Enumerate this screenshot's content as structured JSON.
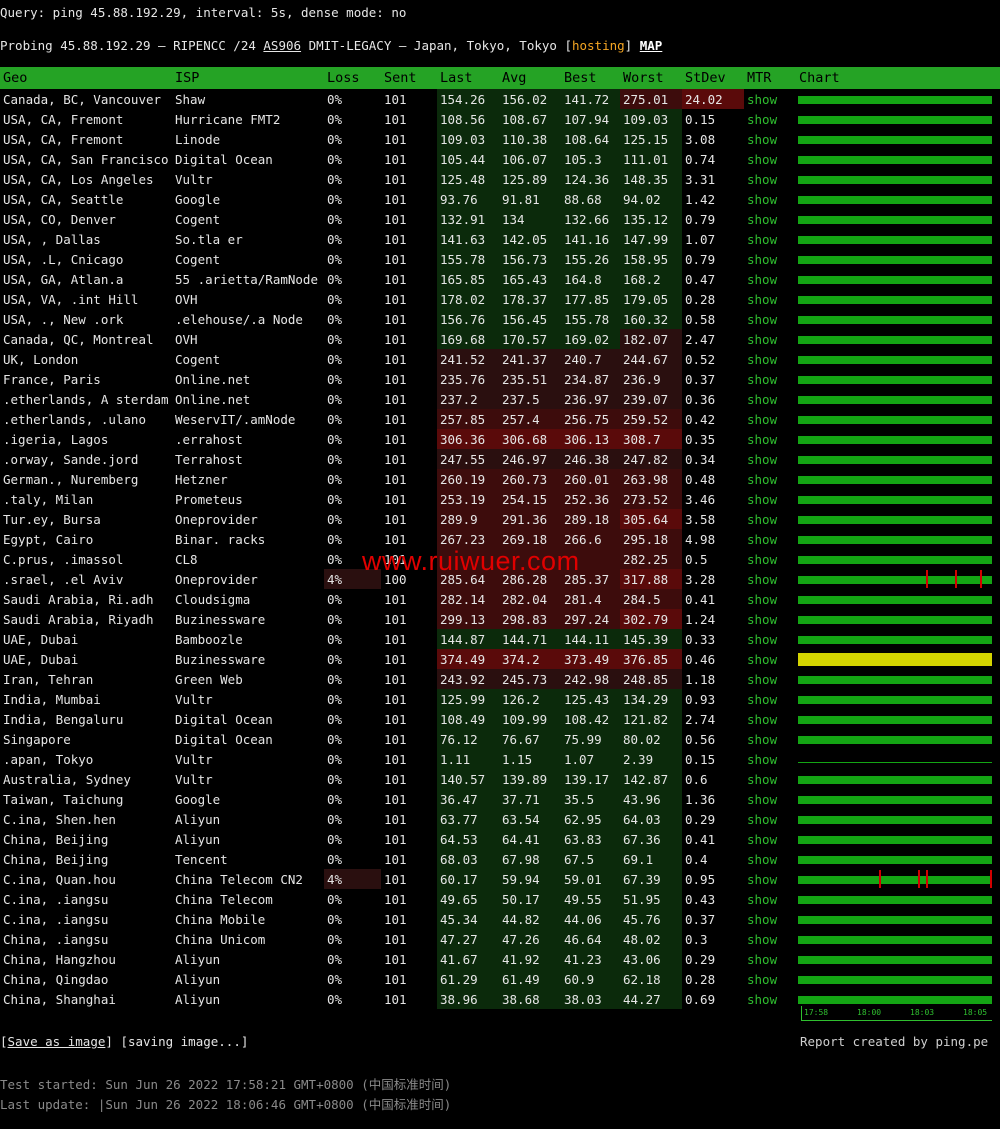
{
  "query": "Query: ping 45.88.192.29, interval: 5s, dense mode: no",
  "probe": {
    "prefix": "Probing 45.88.192.29 – RIPENCC /24 ",
    "asn": "AS906",
    "mid": " DMIT-LEGACY – Japan, Tokyo, Tokyo [",
    "hosting": "hosting",
    "close": "] ",
    "map": "MAP"
  },
  "headers": [
    "Geo",
    "ISP",
    "Loss",
    "Sent",
    "Last",
    "Avg",
    "Best",
    "Worst",
    "StDev",
    "MTR",
    "Chart"
  ],
  "rows": [
    {
      "geo": "Canada, BC, Vancouver",
      "isp": "Shaw",
      "loss": "0%",
      "sent": "101",
      "last": "154.26",
      "avg": "156.02",
      "best": "141.72",
      "worst": "275.01",
      "stdev": "24.02",
      "mtr": "show"
    },
    {
      "geo": "USA, CA, Fremont",
      "isp": "Hurricane FMT2",
      "loss": "0%",
      "sent": "101",
      "last": "108.56",
      "avg": "108.67",
      "best": "107.94",
      "worst": "109.03",
      "stdev": "0.15",
      "mtr": "show"
    },
    {
      "geo": "USA, CA, Fremont",
      "isp": "Linode",
      "loss": "0%",
      "sent": "101",
      "last": "109.03",
      "avg": "110.38",
      "best": "108.64",
      "worst": "125.15",
      "stdev": "3.08",
      "mtr": "show"
    },
    {
      "geo": "USA, CA, San Francisco",
      "isp": "Digital Ocean",
      "loss": "0%",
      "sent": "101",
      "last": "105.44",
      "avg": "106.07",
      "best": "105.3",
      "worst": "111.01",
      "stdev": "0.74",
      "mtr": "show"
    },
    {
      "geo": "USA, CA, Los Angeles",
      "isp": "Vultr",
      "loss": "0%",
      "sent": "101",
      "last": "125.48",
      "avg": "125.89",
      "best": "124.36",
      "worst": "148.35",
      "stdev": "3.31",
      "mtr": "show"
    },
    {
      "geo": "USA, CA, Seattle",
      "isp": "Google",
      "loss": "0%",
      "sent": "101",
      "last": "93.76",
      "avg": "91.81",
      "best": "88.68",
      "worst": "94.02",
      "stdev": "1.42",
      "mtr": "show"
    },
    {
      "geo": "USA, CO, Denver",
      "isp": "Cogent",
      "loss": "0%",
      "sent": "101",
      "last": "132.91",
      "avg": "134",
      "best": "132.66",
      "worst": "135.12",
      "stdev": "0.79",
      "mtr": "show"
    },
    {
      "geo": "USA,    , Dallas",
      "isp": "So.tla er",
      "loss": "0%",
      "sent": "101",
      "last": "141.63",
      "avg": "142.05",
      "best": "141.16",
      "worst": "147.99",
      "stdev": "1.07",
      "mtr": "show"
    },
    {
      "geo": "USA, .L, Cnicago",
      "isp": "Cogent",
      "loss": "0%",
      "sent": "101",
      "last": "155.78",
      "avg": "156.73",
      "best": "155.26",
      "worst": "158.95",
      "stdev": "0.79",
      "mtr": "show"
    },
    {
      "geo": "USA, GA, Atlan.a",
      "isp": "55 .arietta/RamNode",
      "loss": "0%",
      "sent": "101",
      "last": "165.85",
      "avg": "165.43",
      "best": "164.8",
      "worst": "168.2",
      "stdev": "0.47",
      "mtr": "show"
    },
    {
      "geo": "USA, VA, .int Hill",
      "isp": "OVH",
      "loss": "0%",
      "sent": "101",
      "last": "178.02",
      "avg": "178.37",
      "best": "177.85",
      "worst": "179.05",
      "stdev": "0.28",
      "mtr": "show"
    },
    {
      "geo": "USA, ., New .ork",
      "isp": ".elehouse/.a Node",
      "loss": "0%",
      "sent": "101",
      "last": "156.76",
      "avg": "156.45",
      "best": "155.78",
      "worst": "160.32",
      "stdev": "0.58",
      "mtr": "show"
    },
    {
      "geo": "Canada, QC, Montreal",
      "isp": "OVH",
      "loss": "0%",
      "sent": "101",
      "last": "169.68",
      "avg": "170.57",
      "best": "169.02",
      "worst": "182.07",
      "stdev": "2.47",
      "mtr": "show"
    },
    {
      "geo": "UK, London",
      "isp": "Cogent",
      "loss": "0%",
      "sent": "101",
      "last": "241.52",
      "avg": "241.37",
      "best": "240.7",
      "worst": "244.67",
      "stdev": "0.52",
      "mtr": "show"
    },
    {
      "geo": "France, Paris",
      "isp": "Online.net",
      "loss": "0%",
      "sent": "101",
      "last": "235.76",
      "avg": "235.51",
      "best": "234.87",
      "worst": "236.9",
      "stdev": "0.37",
      "mtr": "show"
    },
    {
      "geo": ".etherlands, A sterdam",
      "isp": "Online.net",
      "loss": "0%",
      "sent": "101",
      "last": "237.2",
      "avg": "237.5",
      "best": "236.97",
      "worst": "239.07",
      "stdev": "0.36",
      "mtr": "show"
    },
    {
      "geo": ".etherlands, .ulano",
      "isp": "WeservIT/.amNode",
      "loss": "0%",
      "sent": "101",
      "last": "257.85",
      "avg": "257.4",
      "best": "256.75",
      "worst": "259.52",
      "stdev": "0.42",
      "mtr": "show"
    },
    {
      "geo": ".igeria, Lagos",
      "isp": ".errahost",
      "loss": "0%",
      "sent": "101",
      "last": "306.36",
      "avg": "306.68",
      "best": "306.13",
      "worst": "308.7",
      "stdev": "0.35",
      "mtr": "show"
    },
    {
      "geo": ".orway, Sande.jord",
      "isp": "Terrahost",
      "loss": "0%",
      "sent": "101",
      "last": "247.55",
      "avg": "246.97",
      "best": "246.38",
      "worst": "247.82",
      "stdev": "0.34",
      "mtr": "show"
    },
    {
      "geo": "German., Nuremberg",
      "isp": "Hetzner",
      "loss": "0%",
      "sent": "101",
      "last": "260.19",
      "avg": "260.73",
      "best": "260.01",
      "worst": "263.98",
      "stdev": "0.48",
      "mtr": "show"
    },
    {
      "geo": ".taly, Milan",
      "isp": "Prometeus",
      "loss": "0%",
      "sent": "101",
      "last": "253.19",
      "avg": "254.15",
      "best": "252.36",
      "worst": "273.52",
      "stdev": "3.46",
      "mtr": "show"
    },
    {
      "geo": "Tur.ey, Bursa",
      "isp": "Oneprovider",
      "loss": "0%",
      "sent": "101",
      "last": "289.9",
      "avg": "291.36",
      "best": "289.18",
      "worst": "305.64",
      "stdev": "3.58",
      "mtr": "show"
    },
    {
      "geo": "Egypt, Cairo",
      "isp": "Binar. racks",
      "loss": "0%",
      "sent": "101",
      "last": "267.23",
      "avg": "269.18",
      "best": "266.6",
      "worst": "295.18",
      "stdev": "4.98",
      "mtr": "show"
    },
    {
      "geo": "C.prus, .imassol",
      "isp": "CL8",
      "loss": "0%",
      "sent": "101",
      "last": "",
      "avg": "",
      "best": "",
      "worst": "282.25",
      "stdev": "0.5",
      "mtr": "show"
    },
    {
      "geo": ".srael, .el Aviv",
      "isp": "Oneprovider",
      "loss": "4%",
      "sent": "100",
      "last": "285.64",
      "avg": "286.28",
      "best": "285.37",
      "worst": "317.88",
      "stdev": "3.28",
      "mtr": "show"
    },
    {
      "geo": "Saudi Arabia, Ri.adh",
      "isp": "Cloudsigma",
      "loss": "0%",
      "sent": "101",
      "last": "282.14",
      "avg": "282.04",
      "best": "281.4",
      "worst": "284.5",
      "stdev": "0.41",
      "mtr": "show"
    },
    {
      "geo": "Saudi Arabia, Riyadh",
      "isp": "Buzinessware",
      "loss": "0%",
      "sent": "101",
      "last": "299.13",
      "avg": "298.83",
      "best": "297.24",
      "worst": "302.79",
      "stdev": "1.24",
      "mtr": "show"
    },
    {
      "geo": "UAE, Dubai",
      "isp": "Bamboozle",
      "loss": "0%",
      "sent": "101",
      "last": "144.87",
      "avg": "144.71",
      "best": "144.11",
      "worst": "145.39",
      "stdev": "0.33",
      "mtr": "show"
    },
    {
      "geo": "UAE, Dubai",
      "isp": "Buzinessware",
      "loss": "0%",
      "sent": "101",
      "last": "374.49",
      "avg": "374.2",
      "best": "373.49",
      "worst": "376.85",
      "stdev": "0.46",
      "mtr": "show"
    },
    {
      "geo": "Iran, Tehran",
      "isp": "Green Web",
      "loss": "0%",
      "sent": "101",
      "last": "243.92",
      "avg": "245.73",
      "best": "242.98",
      "worst": "248.85",
      "stdev": "1.18",
      "mtr": "show"
    },
    {
      "geo": "India, Mumbai",
      "isp": "Vultr",
      "loss": "0%",
      "sent": "101",
      "last": "125.99",
      "avg": "126.2",
      "best": "125.43",
      "worst": "134.29",
      "stdev": "0.93",
      "mtr": "show"
    },
    {
      "geo": "India, Bengaluru",
      "isp": "Digital Ocean",
      "loss": "0%",
      "sent": "101",
      "last": "108.49",
      "avg": "109.99",
      "best": "108.42",
      "worst": "121.82",
      "stdev": "2.74",
      "mtr": "show"
    },
    {
      "geo": "Singapore",
      "isp": "Digital Ocean",
      "loss": "0%",
      "sent": "101",
      "last": "76.12",
      "avg": "76.67",
      "best": "75.99",
      "worst": "80.02",
      "stdev": "0.56",
      "mtr": "show"
    },
    {
      "geo": ".apan, Tokyo",
      "isp": "Vultr",
      "loss": "0%",
      "sent": "101",
      "last": "1.11",
      "avg": "1.15",
      "best": "1.07",
      "worst": "2.39",
      "stdev": "0.15",
      "mtr": "show"
    },
    {
      "geo": "Australia, Sydney",
      "isp": "Vultr",
      "loss": "0%",
      "sent": "101",
      "last": "140.57",
      "avg": "139.89",
      "best": "139.17",
      "worst": "142.87",
      "stdev": "0.6",
      "mtr": "show"
    },
    {
      "geo": "Taiwan, Taichung",
      "isp": "Google",
      "loss": "0%",
      "sent": "101",
      "last": "36.47",
      "avg": "37.71",
      "best": "35.5",
      "worst": "43.96",
      "stdev": "1.36",
      "mtr": "show"
    },
    {
      "geo": "C.ina, Shen.hen",
      "isp": "Aliyun",
      "loss": "0%",
      "sent": "101",
      "last": "63.77",
      "avg": "63.54",
      "best": "62.95",
      "worst": "64.03",
      "stdev": "0.29",
      "mtr": "show"
    },
    {
      "geo": "China, Beijing",
      "isp": "Aliyun",
      "loss": "0%",
      "sent": "101",
      "last": "64.53",
      "avg": "64.41",
      "best": "63.83",
      "worst": "67.36",
      "stdev": "0.41",
      "mtr": "show"
    },
    {
      "geo": "China, Beijing",
      "isp": "Tencent",
      "loss": "0%",
      "sent": "101",
      "last": "68.03",
      "avg": "67.98",
      "best": "67.5",
      "worst": "69.1",
      "stdev": "0.4",
      "mtr": "show"
    },
    {
      "geo": "C.ina, Quan.hou",
      "isp": "China Telecom CN2",
      "loss": "4%",
      "sent": "101",
      "last": "60.17",
      "avg": "59.94",
      "best": "59.01",
      "worst": "67.39",
      "stdev": "0.95",
      "mtr": "show"
    },
    {
      "geo": "C.ina, .iangsu",
      "isp": "China Telecom",
      "loss": "0%",
      "sent": "101",
      "last": "49.65",
      "avg": "50.17",
      "best": "49.55",
      "worst": "51.95",
      "stdev": "0.43",
      "mtr": "show"
    },
    {
      "geo": "C.ina, .iangsu",
      "isp": "China Mobile",
      "loss": "0%",
      "sent": "101",
      "last": "45.34",
      "avg": "44.82",
      "best": "44.06",
      "worst": "45.76",
      "stdev": "0.37",
      "mtr": "show"
    },
    {
      "geo": "China, .iangsu",
      "isp": "China Unicom",
      "loss": "0%",
      "sent": "101",
      "last": "47.27",
      "avg": "47.26",
      "best": "46.64",
      "worst": "48.02",
      "stdev": "0.3",
      "mtr": "show"
    },
    {
      "geo": "China, Hangzhou",
      "isp": "Aliyun",
      "loss": "0%",
      "sent": "101",
      "last": "41.67",
      "avg": "41.92",
      "best": "41.23",
      "worst": "43.06",
      "stdev": "0.29",
      "mtr": "show"
    },
    {
      "geo": "China, Qingdao",
      "isp": "Aliyun",
      "loss": "0%",
      "sent": "101",
      "last": "61.29",
      "avg": "61.49",
      "best": "60.9",
      "worst": "62.18",
      "stdev": "0.28",
      "mtr": "show"
    },
    {
      "geo": "China, Shanghai",
      "isp": "Aliyun",
      "loss": "0%",
      "sent": "101",
      "last": "38.96",
      "avg": "38.68",
      "best": "38.03",
      "worst": "44.27",
      "stdev": "0.69",
      "mtr": "show"
    }
  ],
  "chart_axis": [
    "17:58",
    "18:00",
    "18:03",
    "18:05"
  ],
  "watermark": "www.ruiwuer.com",
  "save_image": "Save as image",
  "saving": "[saving image...]",
  "report": "Report created by ping.pe",
  "test_started": "Test started: Sun Jun 26 2022 17:58:21 GMT+0800 (中国标准时间)",
  "last_update": "Last update: |Sun Jun 26 2022 18:06:46 GMT+0800 (中国标准时间)",
  "colors": {
    "header_green": "#25a325",
    "bar_green": "#14a514",
    "loss_red": "#d40000",
    "yellow": "#d4d400"
  }
}
